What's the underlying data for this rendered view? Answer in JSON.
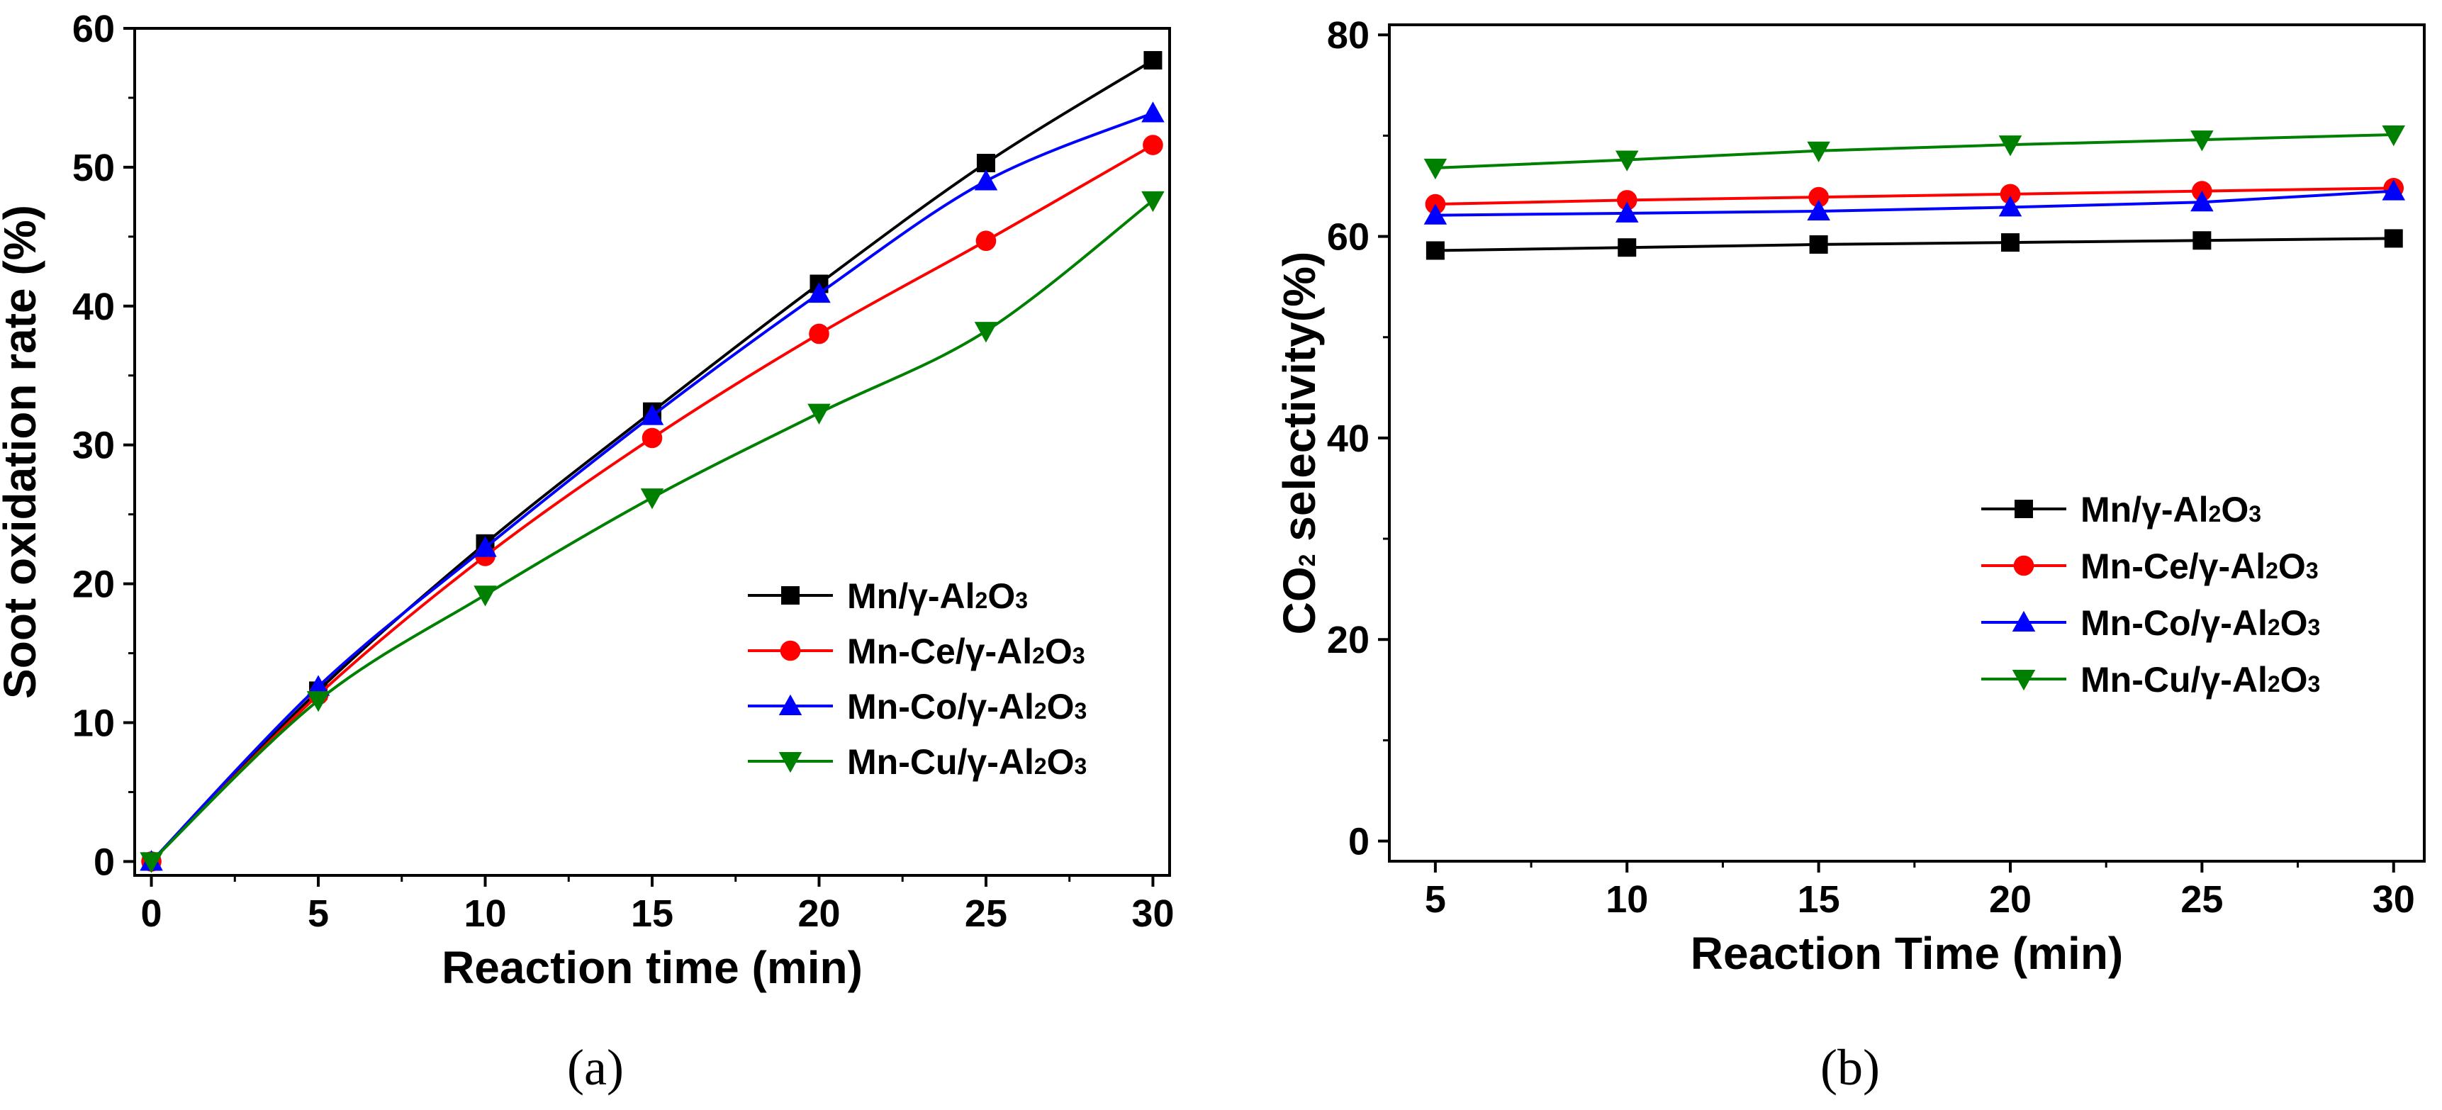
{
  "chart_data": [
    {
      "id": "a",
      "type": "line",
      "panel_label": "(a)",
      "xlabel": "Reaction time (min)",
      "ylabel": "Soot oxidation rate (%)",
      "xlim": [
        -0.5,
        30.5
      ],
      "ylim": [
        -1,
        60
      ],
      "xticks": [
        0,
        5,
        10,
        15,
        20,
        25,
        30
      ],
      "yticks": [
        0,
        10,
        20,
        30,
        40,
        50,
        60
      ],
      "legend_position": "lower-right",
      "x": [
        0,
        5,
        10,
        15,
        20,
        25,
        30
      ],
      "series": [
        {
          "name": "Mn/γ-Al2O3",
          "name_parts": [
            "Mn/γ-Al",
            "2",
            "O",
            "3"
          ],
          "color": "#000000",
          "marker": "square",
          "values": [
            0,
            12.3,
            22.9,
            32.4,
            41.6,
            50.3,
            57.7
          ]
        },
        {
          "name": "Mn-Ce/γ-Al2O3",
          "name_parts": [
            "Mn-Ce/γ-Al",
            "2",
            "O",
            "3"
          ],
          "color": "#ff0000",
          "marker": "circle",
          "values": [
            0,
            12.0,
            22.0,
            30.5,
            38.0,
            44.7,
            51.6
          ]
        },
        {
          "name": "Mn-Co/γ-Al2O3",
          "name_parts": [
            "Mn-Co/γ-Al",
            "2",
            "O",
            "3"
          ],
          "color": "#0000ff",
          "marker": "triangle-up",
          "values": [
            0,
            12.6,
            22.6,
            32.1,
            40.9,
            49.0,
            53.9
          ]
        },
        {
          "name": "Mn-Cu/γ-Al2O3",
          "name_parts": [
            "Mn-Cu/γ-Al",
            "2",
            "O",
            "3"
          ],
          "color": "#008000",
          "marker": "triangle-down",
          "values": [
            0,
            11.6,
            19.2,
            26.2,
            32.3,
            38.2,
            47.6
          ]
        }
      ]
    },
    {
      "id": "b",
      "type": "line",
      "panel_label": "(b)",
      "xlabel": "Reaction Time (min)",
      "ylabel_parts": [
        "CO",
        "2",
        " selectivity(%)"
      ],
      "ylabel": "CO2 selectivity(%)",
      "xlim": [
        3.8,
        30.8
      ],
      "ylim": [
        -2,
        81
      ],
      "xticks": [
        5,
        10,
        15,
        20,
        25,
        30
      ],
      "yticks": [
        0,
        20,
        40,
        60,
        80
      ],
      "legend_position": "center-right",
      "x": [
        5,
        10,
        15,
        20,
        25,
        30
      ],
      "series": [
        {
          "name": "Mn/γ-Al2O3",
          "name_parts": [
            "Mn/γ-Al",
            "2",
            "O",
            "3"
          ],
          "color": "#000000",
          "marker": "square",
          "values": [
            58.6,
            58.9,
            59.2,
            59.4,
            59.6,
            59.8
          ]
        },
        {
          "name": "Mn-Ce/γ-Al2O3",
          "name_parts": [
            "Mn-Ce/γ-Al",
            "2",
            "O",
            "3"
          ],
          "color": "#ff0000",
          "marker": "circle",
          "values": [
            63.2,
            63.6,
            63.9,
            64.2,
            64.5,
            64.8
          ]
        },
        {
          "name": "Mn-Co/γ-Al2O3",
          "name_parts": [
            "Mn-Co/γ-Al",
            "2",
            "O",
            "3"
          ],
          "color": "#0000ff",
          "marker": "triangle-up",
          "values": [
            62.1,
            62.3,
            62.5,
            62.9,
            63.4,
            64.5
          ]
        },
        {
          "name": "Mn-Cu/γ-Al2O3",
          "name_parts": [
            "Mn-Cu/γ-Al",
            "2",
            "O",
            "3"
          ],
          "color": "#008000",
          "marker": "triangle-down",
          "values": [
            66.8,
            67.6,
            68.5,
            69.1,
            69.6,
            70.1
          ]
        }
      ]
    }
  ]
}
